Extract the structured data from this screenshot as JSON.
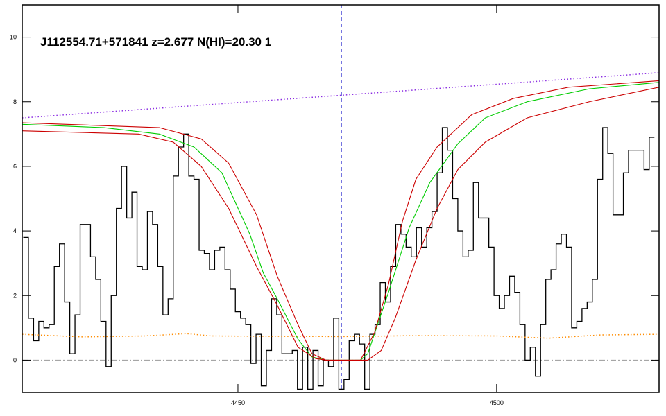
{
  "chart_data": {
    "type": "line",
    "title": "J112554.71+571841 z=2.677 N(HI)=20.30 1",
    "xlim": [
      4408.3,
      4531.4
    ],
    "ylim": [
      -1,
      11
    ],
    "xticks": [
      4450,
      4500
    ],
    "yticks": [
      0,
      2,
      4,
      6,
      8,
      10
    ],
    "reference_x": 4470,
    "reference_y": 0,
    "series": [
      {
        "style": "steps",
        "color": "#000000",
        "x": [
          4409,
          4410,
          4411,
          4412,
          4413,
          4414,
          4415,
          4416,
          4417,
          4418,
          4419,
          4420,
          4421,
          4422,
          4423,
          4424,
          4425,
          4426,
          4427,
          4428,
          4429,
          4430,
          4431,
          4432,
          4433,
          4434,
          4435,
          4436,
          4437,
          4438,
          4439,
          4440,
          4441,
          4442,
          4443,
          4444,
          4445,
          4446,
          4447,
          4448,
          4449,
          4450,
          4451,
          4452,
          4453,
          4454,
          4455,
          4456,
          4457,
          4458,
          4459,
          4460,
          4461,
          4462,
          4463,
          4464,
          4465,
          4466,
          4467,
          4468,
          4469,
          4470,
          4471,
          4472,
          4473,
          4474,
          4475,
          4476,
          4477,
          4478,
          4479,
          4480,
          4481,
          4482,
          4483,
          4484,
          4485,
          4486,
          4487,
          4488,
          4489,
          4490,
          4491,
          4492,
          4493,
          4494,
          4495,
          4496,
          4497,
          4498,
          4499,
          4500,
          4501,
          4502,
          4503,
          4504,
          4505,
          4506,
          4507,
          4508,
          4509,
          4510,
          4511,
          4512,
          4513,
          4514,
          4515,
          4516,
          4517,
          4518,
          4519,
          4520,
          4521,
          4522,
          4523,
          4524,
          4525,
          4526,
          4527,
          4528,
          4529,
          4530
        ],
        "values": [
          3.8,
          1.3,
          0.6,
          1.2,
          1.0,
          1.1,
          2.9,
          3.6,
          1.8,
          0.2,
          1.4,
          4.2,
          4.2,
          3.2,
          2.5,
          1.2,
          -0.2,
          2.0,
          4.7,
          6.0,
          4.4,
          5.2,
          2.9,
          2.8,
          4.6,
          4.2,
          2.9,
          1.4,
          1.9,
          5.7,
          6.6,
          7.0,
          5.7,
          5.6,
          3.4,
          3.3,
          2.8,
          3.4,
          3.5,
          2.8,
          2.2,
          1.5,
          1.3,
          1.1,
          -0.1,
          0.8,
          -0.8,
          0.3,
          1.9,
          1.4,
          0.2,
          0.2,
          0.3,
          -0.9,
          0.4,
          -0.9,
          0.3,
          -0.8,
          0.0,
          -0.2,
          1.3,
          -0.9,
          -0.6,
          0.6,
          0.8,
          0.5,
          -0.9,
          0.8,
          1.1,
          2.4,
          1.8,
          2.9,
          4.2,
          3.9,
          3.5,
          3.2,
          4.1,
          3.5,
          4.1,
          4.6,
          5.8,
          7.2,
          6.5,
          5.0,
          4.0,
          3.2,
          3.4,
          5.5,
          4.4,
          4.4,
          3.5,
          2.0,
          1.6,
          2.0,
          2.6,
          2.1,
          1.1,
          0.0,
          0.4,
          -0.5,
          1.1,
          2.5,
          2.8,
          3.6,
          3.9,
          3.5,
          1.0,
          1.2,
          1.6,
          1.8,
          2.5,
          5.6,
          7.2,
          6.4,
          4.5,
          4.5,
          5.8,
          6.5,
          6.5,
          6.5,
          5.9,
          6.9
        ]
      },
      {
        "style": "dotted",
        "color": "#8a2be2",
        "x": [
          4408.3,
          4531.4
        ],
        "values": [
          7.5,
          8.9
        ]
      },
      {
        "style": "dotted",
        "color": "#ff8c00",
        "x": [
          4408.3,
          4420,
          4432,
          4440,
          4445,
          4455,
          4470,
          4485,
          4500,
          4510,
          4520,
          4531.4
        ],
        "values": [
          0.8,
          0.72,
          0.75,
          0.82,
          0.75,
          0.74,
          0.73,
          0.76,
          0.75,
          0.68,
          0.78,
          0.8
        ]
      },
      {
        "style": "solid",
        "color": "#00cc00",
        "x": [
          4408.3,
          4424.1,
          4434.8,
          4441.5,
          4446.9,
          4452.3,
          4454.9,
          4457.6,
          4461.6,
          4464.3,
          4467,
          4473.7,
          4475.1,
          4479.1,
          4483.1,
          4487.1,
          4492.5,
          4497.8,
          4505.9,
          4517.9,
          4531.4
        ],
        "values": [
          7.3,
          7.2,
          7.0,
          6.6,
          5.8,
          3.9,
          2.7,
          1.9,
          0.65,
          0.1,
          0,
          0,
          0.2,
          2.1,
          4.1,
          5.5,
          6.7,
          7.5,
          8.0,
          8.4,
          8.6
        ]
      },
      {
        "style": "solid",
        "color": "#cc0000",
        "x": [
          4408.3,
          4434.8,
          4442.9,
          4448.2,
          4453.6,
          4457.6,
          4461.6,
          4464.3,
          4467,
          4473.7,
          4476.4,
          4479.1,
          4481.8,
          4484.4,
          4488.5,
          4495.2,
          4503.2,
          4513.9,
          4531.4
        ],
        "values": [
          7.35,
          7.2,
          6.85,
          6.1,
          4.5,
          2.6,
          1.1,
          0.2,
          0,
          0,
          0.85,
          2.35,
          4.3,
          5.6,
          6.6,
          7.6,
          8.1,
          8.45,
          8.65
        ]
      },
      {
        "style": "solid",
        "color": "#cc0000",
        "x": [
          4408.3,
          4430.8,
          4437.5,
          4442.9,
          4448.2,
          4453.6,
          4457.6,
          4461.6,
          4465.0,
          4467,
          4475.1,
          4477.7,
          4480.4,
          4484.4,
          4488.5,
          4492.5,
          4497.8,
          4505.9,
          4517.9,
          4531.4
        ],
        "values": [
          7.1,
          7.0,
          6.75,
          6.0,
          4.7,
          2.9,
          1.7,
          0.4,
          0.05,
          0,
          0,
          0.3,
          1.3,
          3.1,
          4.7,
          5.9,
          6.75,
          7.5,
          8.0,
          8.45
        ]
      }
    ]
  }
}
